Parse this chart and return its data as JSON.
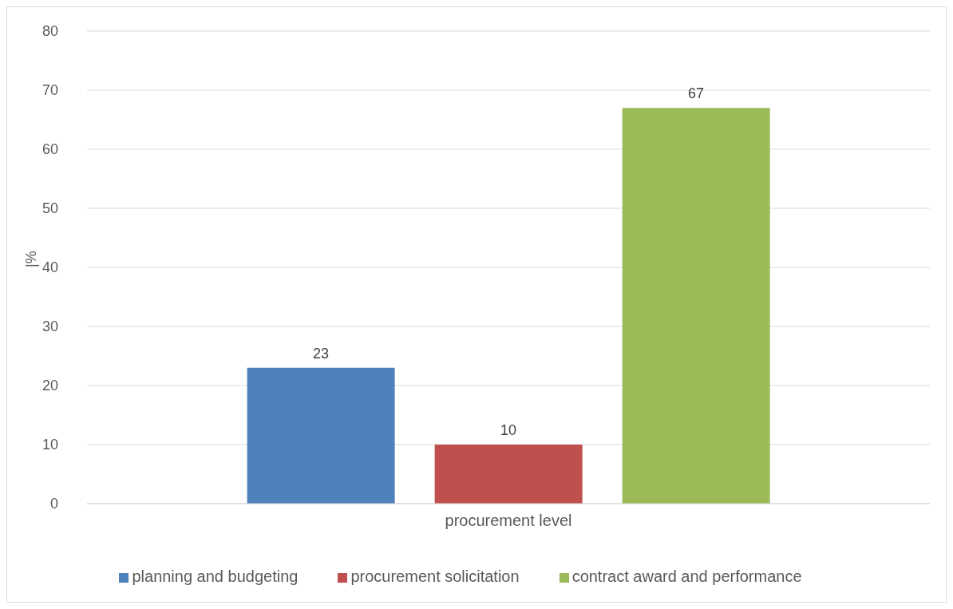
{
  "chart_data": {
    "type": "bar",
    "ylabel": "|%",
    "xlabel": "procurement level",
    "categories": [
      null
    ],
    "series": [
      {
        "name": "planning and budgeting",
        "color": "#4f81bd",
        "values": [
          23
        ]
      },
      {
        "name": "procurement solicitation",
        "color": "#c0504d",
        "values": [
          10
        ]
      },
      {
        "name": "contract award and performance",
        "color": "#9bbb59",
        "values": [
          67
        ]
      }
    ],
    "ylim": [
      0,
      80
    ],
    "yticks": [
      0,
      10,
      20,
      30,
      40,
      50,
      60,
      70,
      80
    ],
    "grid": "y",
    "legend": "bottom",
    "data_labels": true
  }
}
